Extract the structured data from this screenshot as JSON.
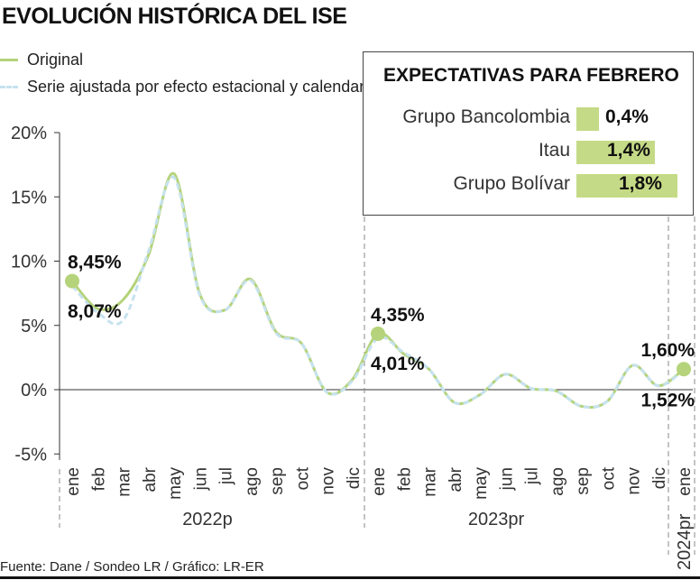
{
  "chart_data": {
    "type": "line",
    "title": "EVOLUCIÓN HISTÓRICA DEL ISE",
    "x": [
      "ene",
      "feb",
      "mar",
      "abr",
      "may",
      "jun",
      "jul",
      "ago",
      "sep",
      "oct",
      "nov",
      "dic",
      "ene",
      "feb",
      "mar",
      "abr",
      "may",
      "jun",
      "jul",
      "ago",
      "sep",
      "oct",
      "nov",
      "dic",
      "ene"
    ],
    "year_groups": [
      {
        "label": "2022p",
        "from": 0,
        "to": 11
      },
      {
        "label": "2023pr",
        "from": 12,
        "to": 23
      },
      {
        "label": "2024pr",
        "from": 24,
        "to": 24
      }
    ],
    "ylim": [
      -5,
      20
    ],
    "yticks": [
      {
        "v": 20,
        "l": "20%"
      },
      {
        "v": 15,
        "l": "15%"
      },
      {
        "v": 10,
        "l": "10%"
      },
      {
        "v": 5,
        "l": "5%"
      },
      {
        "v": 0,
        "l": "0%"
      },
      {
        "v": -5,
        "l": "-5%"
      }
    ],
    "series": [
      {
        "name": "Original",
        "color": "#b5d37a",
        "values": [
          8.45,
          6.3,
          7.0,
          10.5,
          16.8,
          7.5,
          6.2,
          8.6,
          4.5,
          3.6,
          -0.2,
          0.8,
          4.35,
          2.8,
          1.6,
          -1.0,
          -0.4,
          1.2,
          0.1,
          -0.1,
          -1.3,
          -0.9,
          1.9,
          0.3,
          1.6
        ]
      },
      {
        "name": "Serie ajustada por efecto estacional y calendario",
        "color": "#c6e2ee",
        "values": [
          8.07,
          6.0,
          5.4,
          10.8,
          16.5,
          7.4,
          6.2,
          8.5,
          4.4,
          3.6,
          -0.2,
          0.7,
          4.01,
          2.9,
          1.6,
          -1.0,
          -0.4,
          1.2,
          0.1,
          -0.1,
          -1.3,
          -0.9,
          1.9,
          0.3,
          1.52
        ]
      }
    ],
    "annotations": [
      {
        "i": 0,
        "top": "8,45%",
        "bottom": "8,07%"
      },
      {
        "i": 12,
        "top": "4,35%",
        "bottom": "4,01%"
      },
      {
        "i": 24,
        "top": "1,60%",
        "bottom": "1,52%"
      }
    ]
  },
  "inset": {
    "title": "EXPECTATIVAS PARA FEBRERO",
    "items": [
      {
        "label": "Grupo Bancolombia",
        "value": 0.4,
        "text": "0,4%"
      },
      {
        "label": "Itau",
        "value": 1.4,
        "text": "1,4%"
      },
      {
        "label": "Grupo Bolívar",
        "value": 1.8,
        "text": "1,8%"
      }
    ]
  },
  "footer": "Fuente: Dane / Sondeo LR / Gráfico: LR-ER"
}
